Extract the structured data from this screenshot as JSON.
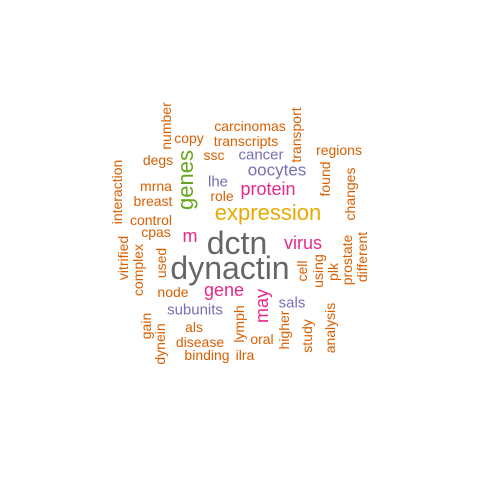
{
  "colors": {
    "orange": "#D95F02",
    "purple": "#7570B3",
    "green": "#66A61E",
    "gold": "#E6AB02",
    "magenta": "#E7298A",
    "gray": "#666666"
  },
  "words": [
    {
      "text": "dctn",
      "color": "#666666"
    },
    {
      "text": "dynactin",
      "color": "#666666"
    },
    {
      "text": "expression",
      "color": "#E6AB02"
    },
    {
      "text": "genes",
      "color": "#66A61E"
    },
    {
      "text": "protein",
      "color": "#E7298A"
    },
    {
      "text": "oocytes",
      "color": "#7570B3"
    },
    {
      "text": "gene",
      "color": "#E7298A"
    },
    {
      "text": "virus",
      "color": "#E7298A"
    },
    {
      "text": "may",
      "color": "#E7298A"
    },
    {
      "text": "m",
      "color": "#E7298A"
    },
    {
      "text": "cancer",
      "color": "#7570B3"
    },
    {
      "text": "lhe",
      "color": "#7570B3"
    },
    {
      "text": "subunits",
      "color": "#7570B3"
    },
    {
      "text": "sals",
      "color": "#7570B3"
    },
    {
      "text": "carcinomas",
      "color": "#D95F02"
    },
    {
      "text": "transcripts",
      "color": "#D95F02"
    },
    {
      "text": "copy",
      "color": "#D95F02"
    },
    {
      "text": "number",
      "color": "#D95F02"
    },
    {
      "text": "ssc",
      "color": "#D95F02"
    },
    {
      "text": "degs",
      "color": "#D95F02"
    },
    {
      "text": "regions",
      "color": "#D95F02"
    },
    {
      "text": "transport",
      "color": "#D95F02"
    },
    {
      "text": "found",
      "color": "#D95F02"
    },
    {
      "text": "changes",
      "color": "#D95F02"
    },
    {
      "text": "mrna",
      "color": "#D95F02"
    },
    {
      "text": "breast",
      "color": "#D95F02"
    },
    {
      "text": "role",
      "color": "#D95F02"
    },
    {
      "text": "control",
      "color": "#D95F02"
    },
    {
      "text": "interaction",
      "color": "#D95F02"
    },
    {
      "text": "cpas",
      "color": "#D95F02"
    },
    {
      "text": "vitrified",
      "color": "#D95F02"
    },
    {
      "text": "complex",
      "color": "#D95F02"
    },
    {
      "text": "used",
      "color": "#D95F02"
    },
    {
      "text": "node",
      "color": "#D95F02"
    },
    {
      "text": "cell",
      "color": "#D95F02"
    },
    {
      "text": "using",
      "color": "#D95F02"
    },
    {
      "text": "plk",
      "color": "#D95F02"
    },
    {
      "text": "prostate",
      "color": "#D95F02"
    },
    {
      "text": "different",
      "color": "#D95F02"
    },
    {
      "text": "gain",
      "color": "#D95F02"
    },
    {
      "text": "dynein",
      "color": "#D95F02"
    },
    {
      "text": "als",
      "color": "#D95F02"
    },
    {
      "text": "disease",
      "color": "#D95F02"
    },
    {
      "text": "binding",
      "color": "#D95F02"
    },
    {
      "text": "ilra",
      "color": "#D95F02"
    },
    {
      "text": "lymph",
      "color": "#D95F02"
    },
    {
      "text": "oral",
      "color": "#D95F02"
    },
    {
      "text": "higher",
      "color": "#D95F02"
    },
    {
      "text": "study",
      "color": "#D95F02"
    },
    {
      "text": "analysis",
      "color": "#D95F02"
    }
  ]
}
